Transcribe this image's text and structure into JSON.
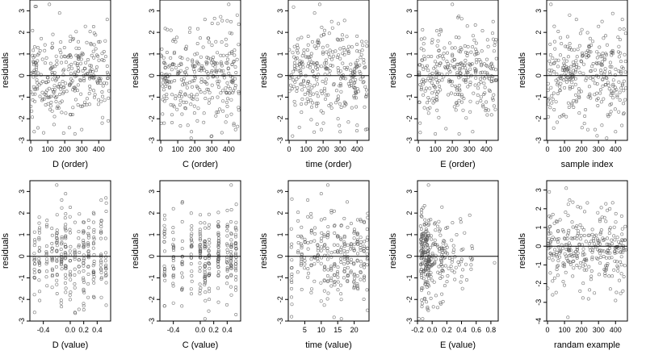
{
  "chart_data": [
    {
      "type": "scatter",
      "xlabel": "D (order)",
      "ylabel": "residuals",
      "xlim": [
        -5,
        470
      ],
      "ylim": [
        -3,
        3.5
      ],
      "xticks": [
        0,
        100,
        200,
        300,
        400
      ],
      "yticks": [
        -3,
        -2,
        -1,
        0,
        1,
        2,
        3
      ],
      "hline": 0,
      "xmode": "order",
      "seed": 11,
      "cats": [],
      "points": [
        [
          2,
          0.1
        ],
        [
          20,
          -2.6
        ],
        [
          110,
          3.3
        ],
        [
          170,
          2.9
        ],
        [
          260,
          -2.7
        ],
        [
          300,
          -2.5
        ],
        [
          420,
          -2.2
        ],
        [
          450,
          2.6
        ]
      ]
    },
    {
      "type": "scatter",
      "xlabel": "C (order)",
      "ylabel": "residuals",
      "xlim": [
        -5,
        470
      ],
      "ylim": [
        -3,
        3.5
      ],
      "xticks": [
        0,
        100,
        200,
        300,
        400
      ],
      "yticks": [
        -3,
        -2,
        -1,
        0,
        1,
        2,
        3
      ],
      "hline": 0,
      "xmode": "order",
      "seed": 23,
      "cats": [],
      "points": [
        [
          20,
          -2.2
        ],
        [
          60,
          2.1
        ],
        [
          160,
          -2.3
        ],
        [
          260,
          2.6
        ],
        [
          300,
          -2.8
        ],
        [
          400,
          3.3
        ],
        [
          440,
          -2.5
        ],
        [
          450,
          2.8
        ]
      ]
    },
    {
      "type": "scatter",
      "xlabel": "time (order)",
      "ylabel": "residuals",
      "xlim": [
        -5,
        470
      ],
      "ylim": [
        -3,
        3.5
      ],
      "xticks": [
        0,
        100,
        200,
        300,
        400
      ],
      "yticks": [
        -3,
        -2,
        -1,
        0,
        1,
        2,
        3
      ],
      "hline": 0,
      "xmode": "order",
      "seed": 37,
      "cats": [],
      "points": [
        [
          20,
          -2.8
        ],
        [
          60,
          -2.4
        ],
        [
          150,
          2.9
        ],
        [
          180,
          3.3
        ],
        [
          250,
          2.5
        ],
        [
          300,
          -2.6
        ],
        [
          400,
          -2.3
        ],
        [
          450,
          -2.5
        ]
      ]
    },
    {
      "type": "scatter",
      "xlabel": "E (order)",
      "ylabel": "residuals",
      "xlim": [
        -5,
        470
      ],
      "ylim": [
        -3,
        3.5
      ],
      "xticks": [
        0,
        100,
        200,
        300,
        400
      ],
      "yticks": [
        -3,
        -2,
        -1,
        0,
        1,
        2,
        3
      ],
      "hline": 0,
      "xmode": "order",
      "seed": 41,
      "cats": [],
      "points": [
        [
          10,
          -2.2
        ],
        [
          100,
          -2.7
        ],
        [
          200,
          3.3
        ],
        [
          240,
          -2.7
        ],
        [
          320,
          -2.6
        ],
        [
          440,
          2.5
        ]
      ]
    },
    {
      "type": "scatter",
      "xlabel": "sample index",
      "ylabel": "residuals",
      "xlim": [
        -5,
        470
      ],
      "ylim": [
        -3,
        3.5
      ],
      "xticks": [
        0,
        100,
        200,
        300,
        400
      ],
      "yticks": [
        -3,
        -2,
        -1,
        0,
        1,
        2,
        3
      ],
      "hline": 0,
      "xmode": "order",
      "seed": 53,
      "cats": [],
      "points": [
        [
          20,
          3.3
        ],
        [
          110,
          -1.9
        ],
        [
          130,
          2.8
        ],
        [
          170,
          2.6
        ],
        [
          280,
          -2.5
        ],
        [
          320,
          -2.3
        ],
        [
          400,
          -2.6
        ],
        [
          440,
          2.6
        ]
      ]
    },
    {
      "type": "scatter",
      "xlabel": "D (value)",
      "ylabel": "residuals",
      "xlim": [
        -0.6,
        0.6
      ],
      "ylim": [
        -3,
        3.5
      ],
      "xticks": [
        -0.4,
        0,
        0.2,
        0.4
      ],
      "xticklabels": [
        "-0.4",
        "0.0",
        "0.2",
        "0.4"
      ],
      "yticks": [
        -3,
        -2,
        -1,
        0,
        1,
        2,
        3
      ],
      "hline": 0,
      "xmode": "cats",
      "seed": 61,
      "cats": [
        -0.53,
        -0.46,
        -0.35,
        -0.27,
        -0.2,
        -0.13,
        -0.07,
        0,
        0.07,
        0.13,
        0.2,
        0.27,
        0.35,
        0.46,
        0.53
      ],
      "points": [
        [
          -0.53,
          -2.6
        ],
        [
          -0.2,
          3.3
        ],
        [
          -0.07,
          2.9
        ],
        [
          0.07,
          -2.6
        ],
        [
          0.2,
          -2.3
        ],
        [
          0.46,
          2.6
        ],
        [
          0.53,
          2.7
        ]
      ]
    },
    {
      "type": "scatter",
      "xlabel": "C (value)",
      "ylabel": "residuals",
      "xlim": [
        -0.6,
        0.6
      ],
      "ylim": [
        -3,
        3.5
      ],
      "xticks": [
        -0.4,
        0,
        0.2,
        0.4
      ],
      "xticklabels": [
        "-0.4",
        "0.0",
        "0.2",
        "0.4"
      ],
      "yticks": [
        -3,
        -2,
        -1,
        0,
        1,
        2,
        3
      ],
      "hline": 0,
      "xmode": "cats",
      "seed": 71,
      "cats": [
        -0.53,
        -0.4,
        -0.27,
        -0.13,
        0,
        0.07,
        0.13,
        0.27,
        0.4,
        0.46,
        0.53
      ],
      "points": [
        [
          -0.53,
          -2.3
        ],
        [
          -0.4,
          2.2
        ],
        [
          0.07,
          -2.9
        ],
        [
          0.46,
          3.3
        ],
        [
          0.53,
          -2.7
        ]
      ]
    },
    {
      "type": "scatter",
      "xlabel": "time (value)",
      "ylabel": "residuals",
      "xlim": [
        0,
        24.5
      ],
      "ylim": [
        -3,
        3.5
      ],
      "xticks": [
        5,
        10,
        15,
        20
      ],
      "yticks": [
        -3,
        -2,
        -1,
        0,
        1,
        2,
        3
      ],
      "hline": 0,
      "xmode": "cats",
      "seed": 83,
      "cats": [
        1,
        3,
        4,
        5,
        6,
        7,
        8,
        9,
        10,
        11,
        12,
        13,
        14,
        15,
        16,
        17,
        18,
        19,
        20,
        21,
        22,
        23,
        24
      ],
      "points": [
        [
          1,
          -2.8
        ],
        [
          10,
          2.9
        ],
        [
          12,
          3.3
        ],
        [
          24,
          -2.5
        ]
      ]
    },
    {
      "type": "scatter",
      "xlabel": "E (value)",
      "ylabel": "residuals",
      "xlim": [
        -0.2,
        0.9
      ],
      "ylim": [
        -3,
        3.5
      ],
      "xticks": [
        -0.2,
        0,
        0.2,
        0.4,
        0.6,
        0.8
      ],
      "xticklabels": [
        "-0.2",
        "0.0",
        "0.2",
        "0.4",
        "0.6",
        "0.8"
      ],
      "yticks": [
        -3,
        -2,
        -1,
        0,
        1,
        2,
        3
      ],
      "hline": 0,
      "xmode": "skew",
      "seed": 97,
      "cats": [],
      "points": [
        [
          -0.05,
          3.3
        ],
        [
          0.53,
          -0.4
        ],
        [
          0.53,
          -0.6
        ],
        [
          0.85,
          -0.3
        ],
        [
          -0.18,
          -2.9
        ]
      ]
    },
    {
      "type": "scatter",
      "xlabel": "randam example",
      "ylabel": "residuals",
      "xlim": [
        -5,
        470
      ],
      "ylim": [
        -4,
        3.5
      ],
      "xticks": [
        0,
        100,
        200,
        300,
        400
      ],
      "yticks": [
        -4,
        -3,
        -2,
        -1,
        0,
        1,
        2,
        3
      ],
      "hline": 0,
      "xmode": "order",
      "seed": 107,
      "cats": [],
      "points": [
        [
          30,
          -2.6
        ],
        [
          110,
          3.1
        ],
        [
          120,
          -3.8
        ],
        [
          400,
          -2.9
        ],
        [
          10,
          2.9
        ]
      ]
    }
  ]
}
